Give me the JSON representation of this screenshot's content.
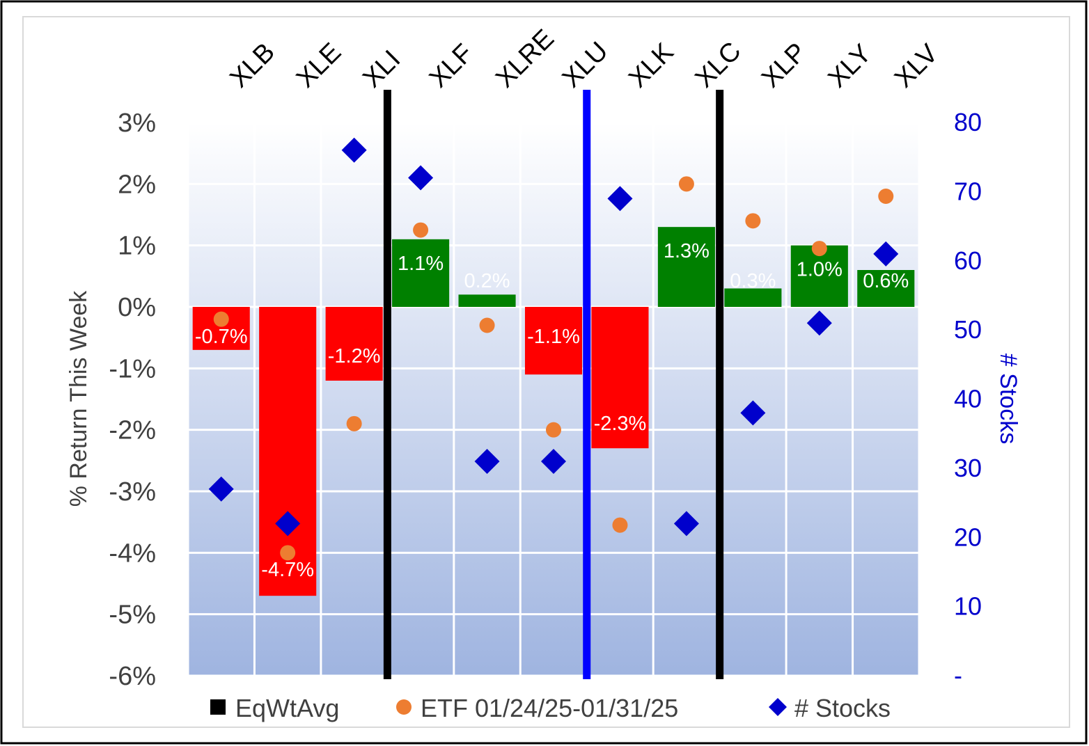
{
  "chart_data": {
    "type": "bar",
    "categories": [
      "XLB",
      "XLE",
      "XLI",
      "XLF",
      "XLRE",
      "XLU",
      "XLK",
      "XLC",
      "XLP",
      "XLY",
      "XLV"
    ],
    "series": [
      {
        "name": "EqWtAvg",
        "kind": "bar",
        "axis": "left",
        "values": [
          -0.7,
          -4.7,
          -1.2,
          1.1,
          0.2,
          -1.1,
          -2.3,
          1.3,
          0.3,
          1.0,
          0.6
        ],
        "labels": [
          "-0.7%",
          "-4.7%",
          "-1.2%",
          "1.1%",
          "0.2%",
          "-1.1%",
          "-2.3%",
          "1.3%",
          "0.3%",
          "1.0%",
          "0.6%"
        ]
      },
      {
        "name": "ETF 01/24/25-01/31/25",
        "kind": "dot",
        "axis": "left",
        "values": [
          -0.2,
          -4.0,
          -1.9,
          1.25,
          -0.3,
          -2.0,
          -3.55,
          2.0,
          1.4,
          0.95,
          1.8
        ]
      },
      {
        "name": "# Stocks",
        "kind": "diamond",
        "axis": "right",
        "values": [
          27,
          22,
          76,
          72,
          31,
          31,
          69,
          22,
          38,
          51,
          61
        ]
      }
    ],
    "ylabel": "% Return This Week",
    "y2label": "# Stocks",
    "ylim": [
      -6,
      3
    ],
    "y2lim": [
      0,
      80
    ],
    "yticks": [
      "3%",
      "2%",
      "1%",
      "0%",
      "-1%",
      "-2%",
      "-3%",
      "-4%",
      "-5%",
      "-6%"
    ],
    "y2ticks": [
      "80",
      "70",
      "60",
      "50",
      "40",
      "30",
      "20",
      "10",
      "-"
    ],
    "legend_position": "bottom",
    "separators": [
      {
        "after": "XLI",
        "color": "#000000"
      },
      {
        "after": "XLU",
        "color": "#0000ff"
      },
      {
        "after": "XLC",
        "color": "#000000"
      }
    ],
    "colors": {
      "negative_bar": "#ff0000",
      "positive_bar": "#008000",
      "etf_dot": "#ed7d31",
      "stocks_diamond": "#0000cc",
      "left_axis_text": "#404040",
      "right_axis_text": "#0000cc",
      "grid": "#ffffff",
      "bg_top": "#ffffff",
      "bg_bottom": "#9fb4e0"
    },
    "grid": true
  }
}
